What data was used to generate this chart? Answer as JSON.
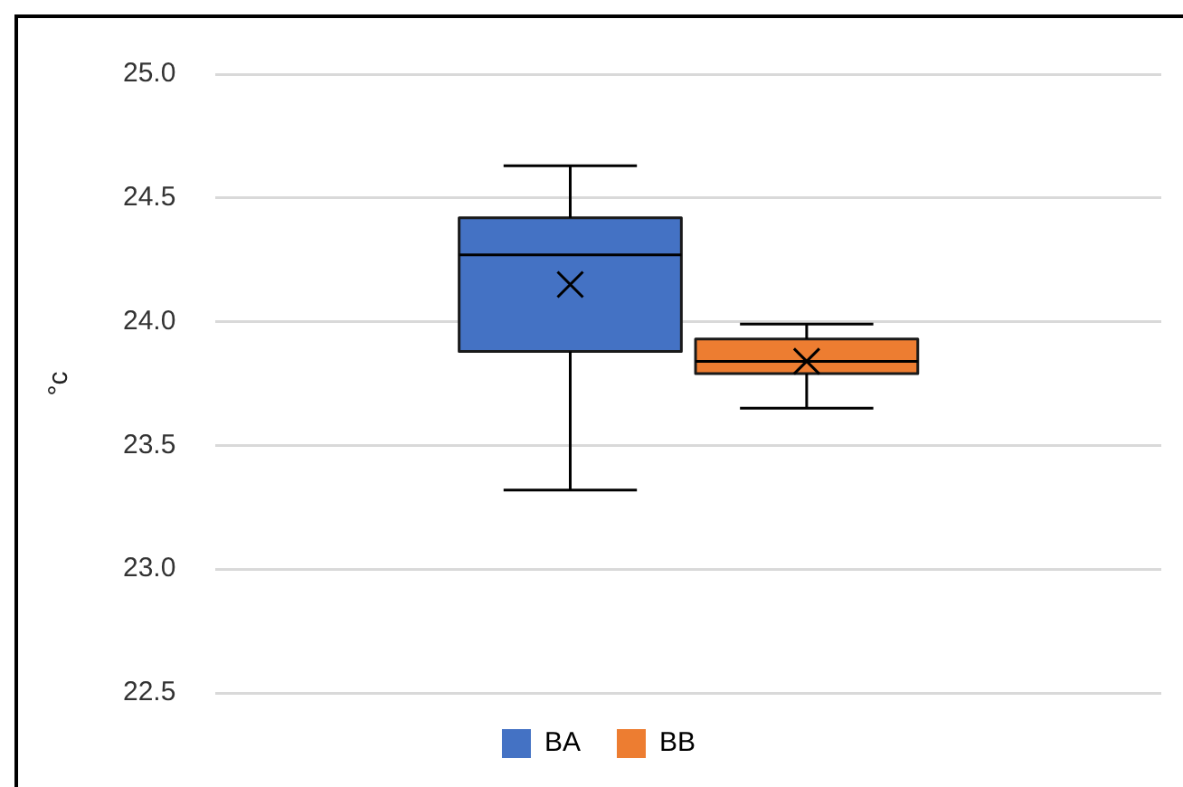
{
  "chart_data": {
    "type": "box",
    "ylabel": "°c",
    "categories": [
      null
    ],
    "series": [
      {
        "name": "BA",
        "color": "#4472c4",
        "boxes": [
          {
            "low": 23.32,
            "q1": 23.88,
            "median": 24.27,
            "q3": 24.42,
            "high": 24.63,
            "mean": 24.15
          }
        ]
      },
      {
        "name": "BB",
        "color": "#ed7d31",
        "boxes": [
          {
            "low": 23.65,
            "q1": 23.79,
            "median": 23.84,
            "q3": 23.93,
            "high": 23.99,
            "mean": 23.84
          }
        ]
      }
    ],
    "ylim": [
      22.5,
      25
    ],
    "yticks": [
      {
        "value": 22.5,
        "label": "22.5"
      },
      {
        "value": 23,
        "label": "23.0"
      },
      {
        "value": 23.5,
        "label": "23.5"
      },
      {
        "value": 24,
        "label": "24.0"
      },
      {
        "value": 24.5,
        "label": "24.5"
      },
      {
        "value": 25,
        "label": "25.0"
      }
    ],
    "grid": "y",
    "legend": "bottom"
  }
}
